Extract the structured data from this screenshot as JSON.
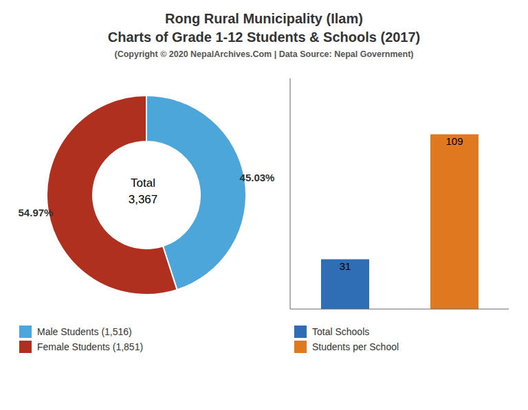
{
  "chart_data": [
    {
      "type": "pie",
      "title": [
        "Rong Rural Municipality (Ilam)",
        "Charts of Grade 1-12 Students & Schools (2017)"
      ],
      "subtitle": "(Copyright © 2020 NepalArchives.Com | Data Source: Nepal Government)",
      "categories": [
        "Male Students (1,516)",
        "Female Students (1,851)"
      ],
      "values": [
        45.03,
        54.97
      ],
      "value_labels": [
        "45.03%",
        "54.97%"
      ],
      "colors": [
        "#4da6d9",
        "#b03020"
      ],
      "data_labels": true,
      "annotations": [
        "Total",
        "3,367"
      ],
      "legend": "bottom"
    },
    {
      "type": "bar",
      "categories": [
        "Total Schools",
        "Students per School"
      ],
      "values": [
        31,
        109
      ],
      "colors": [
        "#2f6db5",
        "#e07820"
      ],
      "ylim": [
        0,
        143.88
      ],
      "data_labels": true,
      "tick_labels": false,
      "legend": "bottom"
    }
  ]
}
